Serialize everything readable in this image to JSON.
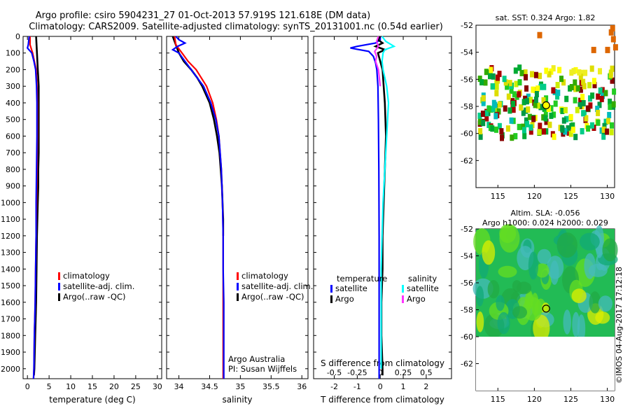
{
  "figure": {
    "title_line1": "Argo profile: csiro 5904231_27 01-Oct-2013 57.919S 121.618E (DM data)",
    "title_line2": "Climatology: CARS2009. Satellite-adjusted climatology: synTS_20131001.nc (0.54d earlier)",
    "credit": "©IMOS 04-Aug-2017 17:12:18",
    "colors": {
      "climatology": "#ff0000",
      "satellite": "#0000ff",
      "argo": "#000000",
      "argo_s": "#ff33ff",
      "sat_s": "#00ffff"
    }
  },
  "chart_data": [
    {
      "id": "temperature",
      "type": "line",
      "xlabel": "temperature (deg C)",
      "ylabel": "",
      "xlim": [
        -1,
        31
      ],
      "ylim": [
        2060,
        0
      ],
      "xticks": [
        "0",
        "5",
        "10",
        "15",
        "20",
        "25",
        "30"
      ],
      "xtick_values": [
        0,
        5,
        10,
        15,
        20,
        25,
        30
      ],
      "yticks": [
        "0",
        "100",
        "200",
        "300",
        "400",
        "500",
        "600",
        "700",
        "800",
        "900",
        "1000",
        "1100",
        "1200",
        "1300",
        "1400",
        "1500",
        "1600",
        "1700",
        "1800",
        "1900",
        "2000"
      ],
      "ytick_values": [
        0,
        100,
        200,
        300,
        400,
        500,
        600,
        700,
        800,
        900,
        1000,
        1100,
        1200,
        1300,
        1400,
        1500,
        1600,
        1700,
        1800,
        1900,
        2000
      ],
      "legend": [
        "climatology",
        "satellite-adj. clim.",
        "Argo(..raw -QC)"
      ],
      "series": [
        {
          "name": "Argo",
          "color": "#000000",
          "depth": [
            0,
            50,
            100,
            150,
            200,
            250,
            300,
            400,
            500,
            600,
            700,
            800,
            900,
            1000,
            1100,
            1200,
            1400,
            1600,
            1800,
            2000,
            2040
          ],
          "values": [
            2.0,
            2.1,
            2.2,
            2.3,
            2.4,
            2.5,
            2.6,
            2.6,
            2.6,
            2.6,
            2.6,
            2.5,
            2.5,
            2.4,
            2.3,
            2.2,
            2.1,
            2.0,
            1.8,
            1.6,
            1.5
          ]
        },
        {
          "name": "climatology",
          "color": "#ff0000",
          "depth": [
            0,
            50,
            100,
            150,
            200,
            300,
            400,
            600,
            800,
            1000,
            1200,
            1400,
            1600,
            1800,
            2000,
            2060
          ],
          "values": [
            0.6,
            0.6,
            1.2,
            1.6,
            2.0,
            2.2,
            2.3,
            2.3,
            2.2,
            2.1,
            2.0,
            1.9,
            1.8,
            1.6,
            1.5,
            1.4
          ]
        },
        {
          "name": "satellite",
          "color": "#0000ff",
          "depth": [
            0,
            50,
            70,
            100,
            150,
            200,
            300,
            400,
            600,
            800,
            1000,
            1200,
            1400,
            1600,
            1800,
            2000,
            2060
          ],
          "values": [
            0.4,
            0.2,
            0.0,
            1.0,
            1.5,
            1.9,
            2.1,
            2.2,
            2.2,
            2.1,
            2.0,
            2.0,
            1.9,
            1.8,
            1.6,
            1.5,
            1.4
          ]
        }
      ]
    },
    {
      "id": "salinity",
      "type": "line",
      "xlabel": "salinity",
      "xlim": [
        33.8,
        36.1
      ],
      "ylim": [
        2060,
        0
      ],
      "xticks": [
        "34",
        "34.5",
        "35",
        "35.5",
        "36"
      ],
      "xtick_values": [
        34,
        34.5,
        35,
        35.5,
        36
      ],
      "legend": [
        "climatology",
        "satellite-adj. clim.",
        "Argo(..raw -QC)"
      ],
      "annotation": [
        "Argo Australia",
        "PI: Susan Wijffels"
      ],
      "series": [
        {
          "name": "Argo",
          "color": "#000000",
          "depth": [
            0,
            50,
            100,
            150,
            200,
            250,
            300,
            400,
            500,
            600,
            700,
            800,
            900,
            1000,
            1100,
            1200
          ],
          "values": [
            33.9,
            33.95,
            34.0,
            34.08,
            34.2,
            34.3,
            34.38,
            34.5,
            34.57,
            34.62,
            34.66,
            34.68,
            34.7,
            34.71,
            34.72,
            34.72
          ]
        },
        {
          "name": "climatology",
          "color": "#ff0000",
          "depth": [
            0,
            50,
            100,
            150,
            200,
            300,
            400,
            500,
            600,
            800,
            1000,
            1200,
            1400,
            1600,
            1800,
            2000,
            2060
          ],
          "values": [
            33.93,
            33.95,
            34.05,
            34.15,
            34.28,
            34.45,
            34.55,
            34.61,
            34.65,
            34.69,
            34.71,
            34.72,
            34.72,
            34.72,
            34.72,
            34.72,
            34.72
          ]
        },
        {
          "name": "satellite",
          "color": "#0000ff",
          "depth": [
            0,
            20,
            40,
            60,
            80,
            100,
            150,
            200,
            300,
            400,
            500,
            600,
            800,
            1000,
            1200,
            1400,
            1600,
            1800,
            2000,
            2060
          ],
          "values": [
            33.95,
            34.0,
            34.1,
            33.98,
            33.9,
            34.0,
            34.1,
            34.2,
            34.4,
            34.52,
            34.6,
            34.65,
            34.69,
            34.71,
            34.72,
            34.72,
            34.73,
            34.73,
            34.73,
            34.73
          ]
        }
      ]
    },
    {
      "id": "difference",
      "type": "line",
      "xlabel": "T difference from climatology",
      "toplabel": "S difference from climatology",
      "xlim": [
        -2.9,
        3.1
      ],
      "ylim": [
        2060,
        0
      ],
      "xticks": [
        "-2",
        "-1",
        "0",
        "1",
        "2"
      ],
      "xtick_values": [
        -2,
        -1,
        0,
        1,
        2
      ],
      "xticks_top": [
        "-0.5",
        "-0.25",
        "0",
        "0.25",
        "0.5"
      ],
      "xtick_top_values": [
        -0.5,
        -0.25,
        0,
        0.25,
        0.5
      ],
      "legend_headers": [
        "temperature",
        "salinity"
      ],
      "legend": [
        "satellite",
        "Argo",
        "satellite",
        "Argo"
      ],
      "series": [
        {
          "name": "T satellite",
          "color": "#0000ff",
          "axis": "T",
          "depth": [
            0,
            20,
            40,
            60,
            70,
            90,
            120,
            160,
            200,
            300,
            500,
            800,
            1200,
            1600,
            2000,
            2060
          ],
          "values": [
            0.0,
            0.0,
            -0.2,
            -1.0,
            -1.3,
            -0.5,
            -0.3,
            -0.2,
            -0.15,
            -0.1,
            -0.08,
            -0.06,
            -0.05,
            -0.05,
            -0.05,
            -0.05
          ]
        },
        {
          "name": "T Argo",
          "color": "#000000",
          "axis": "T",
          "depth": [
            0,
            20,
            40,
            60,
            80,
            100,
            150,
            200,
            300,
            400,
            600,
            800,
            1000,
            1200,
            1400,
            1600,
            1800,
            2000,
            2040
          ],
          "values": [
            0.0,
            -0.1,
            0.1,
            -0.2,
            0.2,
            -0.1,
            0.0,
            0.1,
            0.15,
            0.2,
            0.25,
            0.2,
            0.15,
            0.1,
            0.1,
            0.05,
            0.05,
            0.1,
            0.1
          ]
        },
        {
          "name": "S satellite",
          "color": "#00ffff",
          "axis": "S",
          "depth": [
            0,
            30,
            60,
            80,
            100,
            150,
            200,
            300,
            400,
            600,
            800,
            1000,
            1200,
            1400,
            1600,
            1800,
            2000
          ],
          "values": [
            0.02,
            0.06,
            0.15,
            0.05,
            0.03,
            0.02,
            0.03,
            0.07,
            0.09,
            0.07,
            0.05,
            0.03,
            0.02,
            0.01,
            0.01,
            0.01,
            0.01
          ]
        },
        {
          "name": "S Argo",
          "color": "#ff33ff",
          "axis": "S",
          "depth": [
            0,
            30,
            60,
            90,
            120,
            150,
            200,
            250,
            300
          ],
          "values": [
            -0.02,
            -0.04,
            -0.02,
            -0.06,
            -0.04,
            -0.05,
            -0.02,
            -0.01,
            0.0
          ]
        }
      ]
    },
    {
      "id": "sst_map",
      "type": "heatmap",
      "title": "sat. SST: 0.324  Argo: 1.82",
      "xticks": [
        "115",
        "120",
        "125",
        "130"
      ],
      "xtick_values": [
        115,
        120,
        125,
        130
      ],
      "yticks": [
        "-52",
        "-54",
        "-56",
        "-58",
        "-60",
        "-62"
      ],
      "ytick_values": [
        -52,
        -54,
        -56,
        -58,
        -60,
        -62
      ],
      "xlim": [
        112,
        131
      ],
      "ylim": [
        -64,
        -52
      ],
      "argo_position": {
        "lon": 121.618,
        "lat": -57.919
      }
    },
    {
      "id": "sla_map",
      "type": "heatmap",
      "title_line1": "Altim. SLA: -0.056",
      "title_line2": "Argo h1000: 0.024  h2000: 0.029",
      "xticks": [
        "115",
        "120",
        "125",
        "130"
      ],
      "xtick_values": [
        115,
        120,
        125,
        130
      ],
      "yticks": [
        "-52",
        "-54",
        "-56",
        "-58",
        "-60",
        "-62"
      ],
      "ytick_values": [
        -52,
        -54,
        -56,
        -58,
        -60,
        -62
      ],
      "xlim": [
        112,
        131
      ],
      "ylim": [
        -64,
        -52
      ],
      "argo_position": {
        "lon": 121.618,
        "lat": -57.919
      }
    }
  ]
}
